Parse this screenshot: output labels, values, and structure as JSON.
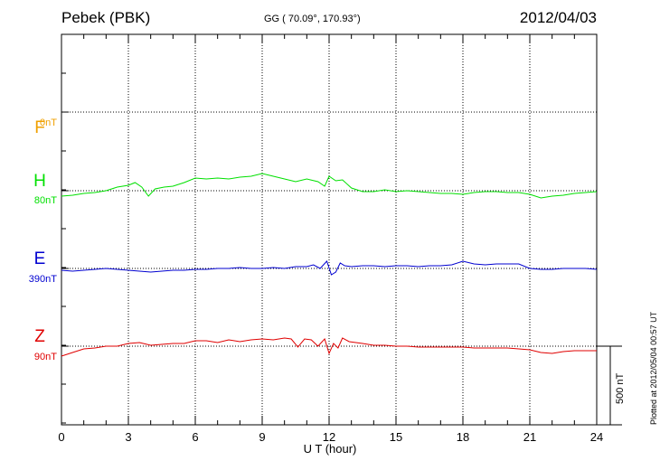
{
  "header": {
    "station": "Pebek (PBK)",
    "coords": "GG ( 70.09°, 170.93°)",
    "date": "2012/04/03"
  },
  "plotted_note": "Plotted at 2012/05/04 00:57 UT",
  "scale_label": "500 nT",
  "chart_data": {
    "type": "line",
    "xlabel": "U T (hour)",
    "xlim": [
      0,
      24
    ],
    "x_ticks": [
      0,
      3,
      6,
      9,
      12,
      15,
      18,
      21,
      24
    ],
    "scale_nT": 500,
    "traces": [
      {
        "name": "F",
        "offset": "0nT",
        "color": "#f0a000",
        "points": []
      },
      {
        "name": "H",
        "offset": "80nT",
        "color": "#00e000",
        "points": [
          [
            0,
            -6
          ],
          [
            0.5,
            -5
          ],
          [
            1,
            -3
          ],
          [
            1.5,
            -2
          ],
          [
            2,
            0
          ],
          [
            2.5,
            4
          ],
          [
            3,
            6
          ],
          [
            3.3,
            9
          ],
          [
            3.6,
            4
          ],
          [
            3.9,
            -6
          ],
          [
            4.2,
            2
          ],
          [
            4.6,
            4
          ],
          [
            5,
            5
          ],
          [
            5.5,
            9
          ],
          [
            6,
            14
          ],
          [
            6.5,
            13
          ],
          [
            7,
            14
          ],
          [
            7.5,
            13
          ],
          [
            8,
            15
          ],
          [
            8.5,
            16
          ],
          [
            9,
            19
          ],
          [
            9.5,
            16
          ],
          [
            10,
            13
          ],
          [
            10.5,
            10
          ],
          [
            11,
            13
          ],
          [
            11.5,
            10
          ],
          [
            11.8,
            5
          ],
          [
            12,
            16
          ],
          [
            12.3,
            11
          ],
          [
            12.6,
            12
          ],
          [
            13,
            3
          ],
          [
            13.5,
            -1
          ],
          [
            14,
            -1
          ],
          [
            14.5,
            1
          ],
          [
            15,
            -1
          ],
          [
            15.5,
            0
          ],
          [
            16,
            -1
          ],
          [
            16.5,
            -2
          ],
          [
            17,
            -3
          ],
          [
            17.5,
            -3
          ],
          [
            18,
            -4
          ],
          [
            18.5,
            -2
          ],
          [
            19,
            -1
          ],
          [
            19.5,
            -1
          ],
          [
            20,
            -2
          ],
          [
            20.5,
            -2
          ],
          [
            21,
            -4
          ],
          [
            21.5,
            -8
          ],
          [
            22,
            -6
          ],
          [
            22.5,
            -5
          ],
          [
            23,
            -3
          ],
          [
            23.5,
            -2
          ],
          [
            24,
            -1
          ]
        ]
      },
      {
        "name": "E",
        "offset": "390nT",
        "color": "#0000d0",
        "points": [
          [
            0,
            -2
          ],
          [
            0.5,
            -3
          ],
          [
            1,
            -2
          ],
          [
            1.5,
            -1
          ],
          [
            2,
            0
          ],
          [
            2.5,
            -1
          ],
          [
            3,
            -2
          ],
          [
            3.5,
            -3
          ],
          [
            4,
            -4
          ],
          [
            4.5,
            -3
          ],
          [
            5,
            -2
          ],
          [
            5.5,
            -2
          ],
          [
            6,
            -1
          ],
          [
            6.5,
            -1
          ],
          [
            7,
            0
          ],
          [
            7.5,
            0
          ],
          [
            8,
            1
          ],
          [
            8.5,
            0
          ],
          [
            9,
            0
          ],
          [
            9.5,
            1
          ],
          [
            10,
            0
          ],
          [
            10.5,
            2
          ],
          [
            11,
            2
          ],
          [
            11.3,
            4
          ],
          [
            11.6,
            0
          ],
          [
            11.9,
            8
          ],
          [
            12.1,
            -7
          ],
          [
            12.3,
            -4
          ],
          [
            12.5,
            6
          ],
          [
            12.7,
            3
          ],
          [
            13,
            2
          ],
          [
            13.5,
            3
          ],
          [
            14,
            3
          ],
          [
            14.5,
            2
          ],
          [
            15,
            3
          ],
          [
            15.5,
            3
          ],
          [
            16,
            2
          ],
          [
            16.5,
            3
          ],
          [
            17,
            3
          ],
          [
            17.5,
            4
          ],
          [
            18,
            8
          ],
          [
            18.5,
            5
          ],
          [
            19,
            4
          ],
          [
            19.5,
            5
          ],
          [
            20,
            5
          ],
          [
            20.5,
            5
          ],
          [
            21,
            0
          ],
          [
            21.5,
            -1
          ],
          [
            22,
            -1
          ],
          [
            22.5,
            0
          ],
          [
            23,
            0
          ],
          [
            23.5,
            0
          ],
          [
            24,
            -1
          ]
        ]
      },
      {
        "name": "Z",
        "offset": "90nT",
        "color": "#e00000",
        "points": [
          [
            0,
            -11
          ],
          [
            0.5,
            -7
          ],
          [
            1,
            -3
          ],
          [
            1.5,
            -2
          ],
          [
            2,
            0
          ],
          [
            2.5,
            0
          ],
          [
            3,
            3
          ],
          [
            3.5,
            4
          ],
          [
            4,
            1
          ],
          [
            4.5,
            2
          ],
          [
            5,
            3
          ],
          [
            5.5,
            3
          ],
          [
            6,
            6
          ],
          [
            6.5,
            6
          ],
          [
            7,
            4
          ],
          [
            7.5,
            7
          ],
          [
            8,
            5
          ],
          [
            8.5,
            7
          ],
          [
            9,
            8
          ],
          [
            9.5,
            7
          ],
          [
            10,
            9
          ],
          [
            10.3,
            8
          ],
          [
            10.6,
            -1
          ],
          [
            10.9,
            8
          ],
          [
            11.2,
            7
          ],
          [
            11.5,
            0
          ],
          [
            11.8,
            8
          ],
          [
            12,
            -8
          ],
          [
            12.2,
            3
          ],
          [
            12.4,
            -2
          ],
          [
            12.6,
            9
          ],
          [
            12.9,
            5
          ],
          [
            13.5,
            3
          ],
          [
            14,
            1
          ],
          [
            14.5,
            1
          ],
          [
            15,
            0
          ],
          [
            15.5,
            0
          ],
          [
            16,
            -1
          ],
          [
            16.5,
            -1
          ],
          [
            17,
            -1
          ],
          [
            17.5,
            -1
          ],
          [
            18,
            -1
          ],
          [
            18.5,
            -2
          ],
          [
            19,
            -2
          ],
          [
            19.5,
            -2
          ],
          [
            20,
            -2
          ],
          [
            20.5,
            -3
          ],
          [
            21,
            -4
          ],
          [
            21.5,
            -7
          ],
          [
            22,
            -8
          ],
          [
            22.5,
            -6
          ],
          [
            23,
            -5
          ],
          [
            23.5,
            -5
          ],
          [
            24,
            -5
          ]
        ]
      }
    ]
  }
}
